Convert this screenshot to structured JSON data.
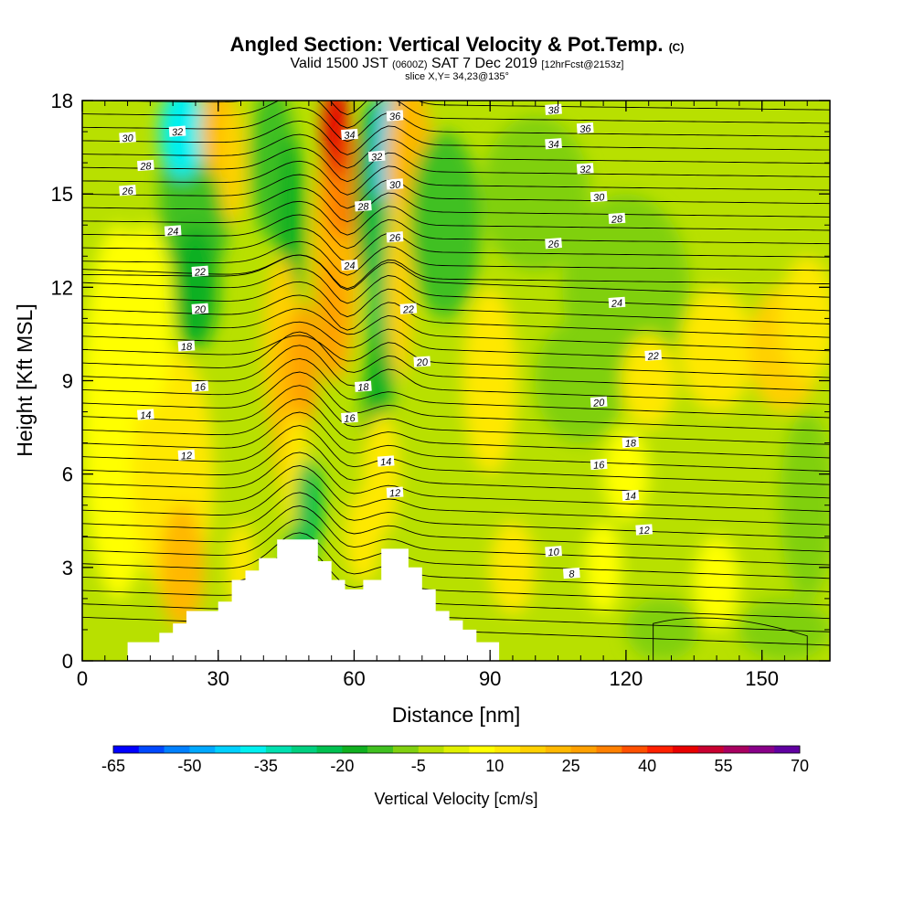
{
  "title": {
    "main": "Angled Section: Vertical Velocity & Pot.Temp.",
    "main_suffix": "(C)",
    "valid_a": "Valid 1500 JST",
    "valid_small": "(0600Z)",
    "valid_b": "SAT 7 Dec 2019",
    "valid_fcst": "[12hrFcst@2153z]",
    "slice": "slice X,Y= 34,23@135°"
  },
  "chart_data": {
    "type": "heatmap",
    "xlabel": "Distance [nm]",
    "ylabel": "Height [Kft MSL]",
    "xlim": [
      0,
      165
    ],
    "ylim": [
      0,
      18
    ],
    "xticks": [
      "0",
      "30",
      "60",
      "90",
      "120",
      "150"
    ],
    "yticks": [
      "0",
      "3",
      "6",
      "9",
      "12",
      "15",
      "18"
    ],
    "field_colorbar": {
      "label": "Vertical Velocity [cm/s]",
      "tick_labels": [
        "-65",
        "-50",
        "-35",
        "-20",
        "-5",
        "10",
        "25",
        "40",
        "55",
        "70"
      ],
      "levels": [
        -65,
        -60,
        -55,
        -50,
        -45,
        -40,
        -35,
        -30,
        -25,
        -20,
        -15,
        -10,
        -5,
        0,
        5,
        10,
        15,
        20,
        25,
        30,
        35,
        40,
        45,
        50,
        55,
        60,
        65,
        70
      ],
      "colors": [
        "#0000ff",
        "#0048ff",
        "#0080ff",
        "#00a8ff",
        "#00d0ff",
        "#00f0f0",
        "#00e0b0",
        "#00d080",
        "#00c050",
        "#10b020",
        "#40c020",
        "#80d010",
        "#b8e000",
        "#e0f000",
        "#ffff00",
        "#ffe800",
        "#ffd000",
        "#ffb800",
        "#ffa000",
        "#ff8000",
        "#ff5000",
        "#ff2000",
        "#e80000",
        "#c80030",
        "#a80060",
        "#880088",
        "#6000a0"
      ]
    },
    "terrain_kft": [
      [
        0,
        0
      ],
      [
        10,
        0
      ],
      [
        10,
        0.6
      ],
      [
        17,
        0.6
      ],
      [
        17,
        0.9
      ],
      [
        20,
        0.9
      ],
      [
        20,
        1.2
      ],
      [
        23,
        1.2
      ],
      [
        23,
        1.6
      ],
      [
        30,
        1.6
      ],
      [
        30,
        1.9
      ],
      [
        33,
        1.9
      ],
      [
        33,
        2.6
      ],
      [
        36,
        2.6
      ],
      [
        36,
        2.9
      ],
      [
        39,
        2.9
      ],
      [
        39,
        3.3
      ],
      [
        43,
        3.3
      ],
      [
        43,
        3.9
      ],
      [
        52,
        3.9
      ],
      [
        52,
        3.2
      ],
      [
        55,
        3.2
      ],
      [
        55,
        2.6
      ],
      [
        58,
        2.6
      ],
      [
        58,
        2.3
      ],
      [
        62,
        2.3
      ],
      [
        62,
        2.6
      ],
      [
        66,
        2.6
      ],
      [
        66,
        3.6
      ],
      [
        72,
        3.6
      ],
      [
        72,
        3.0
      ],
      [
        75,
        3.0
      ],
      [
        75,
        2.3
      ],
      [
        78,
        2.3
      ],
      [
        78,
        1.6
      ],
      [
        81,
        1.6
      ],
      [
        81,
        1.3
      ],
      [
        84,
        1.3
      ],
      [
        84,
        1.0
      ],
      [
        87,
        1.0
      ],
      [
        87,
        0.6
      ],
      [
        92,
        0.6
      ],
      [
        92,
        0
      ],
      [
        165,
        0
      ]
    ],
    "isentrope_labels": [
      {
        "v": "38",
        "x": 104,
        "y": 17.7
      },
      {
        "v": "36",
        "x": 111,
        "y": 17.1
      },
      {
        "v": "34",
        "x": 104,
        "y": 16.6
      },
      {
        "v": "32",
        "x": 111,
        "y": 15.8
      },
      {
        "v": "30",
        "x": 114,
        "y": 14.9
      },
      {
        "v": "28",
        "x": 118,
        "y": 14.2
      },
      {
        "v": "26",
        "x": 104,
        "y": 13.4
      },
      {
        "v": "24",
        "x": 118,
        "y": 11.5
      },
      {
        "v": "22",
        "x": 126,
        "y": 9.8
      },
      {
        "v": "20",
        "x": 114,
        "y": 8.3
      },
      {
        "v": "18",
        "x": 121,
        "y": 7.0
      },
      {
        "v": "16",
        "x": 114,
        "y": 6.3
      },
      {
        "v": "14",
        "x": 121,
        "y": 5.3
      },
      {
        "v": "12",
        "x": 124,
        "y": 4.2
      },
      {
        "v": "10",
        "x": 104,
        "y": 3.5
      },
      {
        "v": "8",
        "x": 108,
        "y": 2.8
      },
      {
        "v": "30",
        "x": 10,
        "y": 16.8
      },
      {
        "v": "32",
        "x": 21,
        "y": 17.0
      },
      {
        "v": "28",
        "x": 14,
        "y": 15.9
      },
      {
        "v": "26",
        "x": 10,
        "y": 15.1
      },
      {
        "v": "24",
        "x": 20,
        "y": 13.8
      },
      {
        "v": "22",
        "x": 26,
        "y": 12.5
      },
      {
        "v": "20",
        "x": 26,
        "y": 11.3
      },
      {
        "v": "18",
        "x": 23,
        "y": 10.1
      },
      {
        "v": "16",
        "x": 26,
        "y": 8.8
      },
      {
        "v": "14",
        "x": 14,
        "y": 7.9
      },
      {
        "v": "12",
        "x": 23,
        "y": 6.6
      },
      {
        "v": "36",
        "x": 69,
        "y": 17.5
      },
      {
        "v": "34",
        "x": 59,
        "y": 16.9
      },
      {
        "v": "32",
        "x": 65,
        "y": 16.2
      },
      {
        "v": "30",
        "x": 69,
        "y": 15.3
      },
      {
        "v": "28",
        "x": 62,
        "y": 14.6
      },
      {
        "v": "26",
        "x": 69,
        "y": 13.6
      },
      {
        "v": "24",
        "x": 59,
        "y": 12.7
      },
      {
        "v": "22",
        "x": 72,
        "y": 11.3
      },
      {
        "v": "20",
        "x": 75,
        "y": 9.6
      },
      {
        "v": "18",
        "x": 62,
        "y": 8.8
      },
      {
        "v": "16",
        "x": 59,
        "y": 7.8
      },
      {
        "v": "14",
        "x": 67,
        "y": 6.4
      },
      {
        "v": "12",
        "x": 69,
        "y": 5.4
      }
    ],
    "isentrope_count": 42
  },
  "colors": {
    "background_field": "#b8e000",
    "terrain": "#ffffff",
    "contour": "#000000"
  }
}
